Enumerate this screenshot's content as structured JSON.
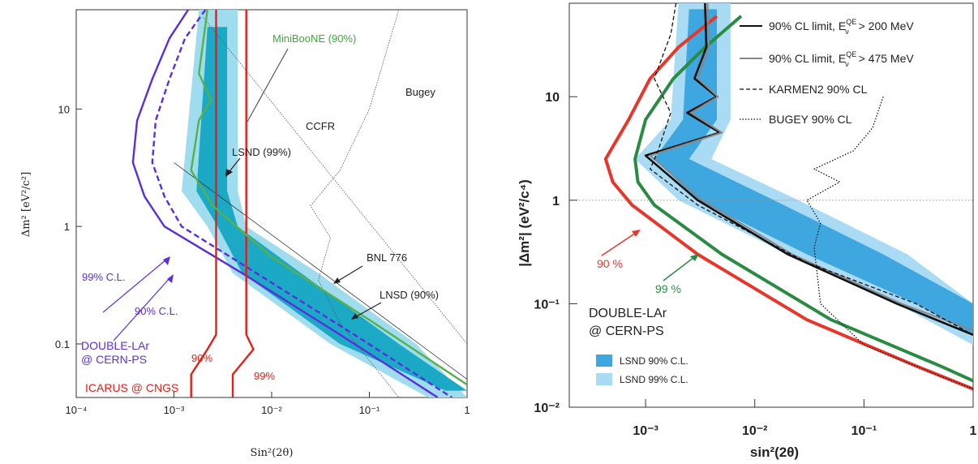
{
  "chart_data": [
    {
      "type": "line",
      "panel": "left",
      "x_scale": "log",
      "y_scale": "log",
      "xlim": [
        0.0001,
        1
      ],
      "ylim": [
        0.035,
        70
      ],
      "xlabel": "Sin²(2θ)",
      "ylabel": "Δm² [eV²/c²]",
      "xticks": [
        "10⁻⁴",
        "10⁻³",
        "10⁻²",
        "10⁻¹",
        "1"
      ],
      "yticks": [
        "0.1",
        "1",
        "10"
      ],
      "colors": {
        "double_lar": "#5a2ee0",
        "icarus": "#e0201a",
        "miniboone": "#56b14a",
        "lsnd_90": "#1ca9c6",
        "lsnd_99": "#9fdcee",
        "exclusion": "#555555"
      },
      "series": [
        {
          "name": "DOUBLE-LAr 99% C.L.",
          "style": "solid",
          "x": [
            0.0014,
            0.0009,
            0.0006,
            0.00042,
            0.00038,
            0.0005,
            0.0008,
            0.005,
            0.05,
            0.5
          ],
          "y": [
            70,
            40,
            18,
            8,
            3.5,
            1.8,
            1.0,
            0.4,
            0.12,
            0.035
          ]
        },
        {
          "name": "DOUBLE-LAr 90% C.L.",
          "style": "dashed",
          "x": [
            0.0021,
            0.0013,
            0.0009,
            0.00065,
            0.0006,
            0.0008,
            0.0012,
            0.007,
            0.07,
            0.7
          ],
          "y": [
            70,
            40,
            18,
            8,
            3.5,
            1.8,
            1.0,
            0.4,
            0.12,
            0.035
          ]
        },
        {
          "name": "ICARUS 90%",
          "style": "solid",
          "x": [
            0.0027,
            0.0027,
            0.0027,
            0.0027,
            0.0022,
            0.0015,
            0.0015
          ],
          "y": [
            70,
            1.0,
            0.2,
            0.12,
            0.09,
            0.055,
            0.035
          ]
        },
        {
          "name": "ICARUS 99%",
          "style": "solid",
          "x": [
            0.0055,
            0.0055,
            0.0055,
            0.0055,
            0.0065,
            0.004,
            0.004
          ],
          "y": [
            70,
            1.0,
            0.2,
            0.12,
            0.09,
            0.055,
            0.035
          ]
        },
        {
          "name": "MiniBooNE (90%)",
          "style": "solid",
          "x": [
            0.0022,
            0.0018,
            0.0024,
            0.0018,
            0.0015,
            0.0025,
            0.01,
            0.1,
            1
          ],
          "y": [
            70,
            20,
            12,
            8,
            3,
            1.5,
            0.55,
            0.16,
            0.045
          ]
        }
      ],
      "lsnd_99_band": {
        "x_lo": [
          0.0018,
          0.0012,
          0.0022,
          0.004,
          0.04,
          0.4
        ],
        "x_hi": [
          0.0045,
          0.0045,
          0.0055,
          0.03,
          0.3,
          1
        ],
        "y": [
          70,
          2.0,
          1.0,
          0.4,
          0.1,
          0.035
        ]
      },
      "lsnd_90_band": {
        "x_lo": [
          0.0022,
          0.0017,
          0.0028,
          0.005,
          0.05,
          0.6
        ],
        "x_hi": [
          0.0035,
          0.0035,
          0.0045,
          0.02,
          0.2,
          1
        ],
        "y": [
          50,
          2.0,
          1.0,
          0.4,
          0.1,
          0.04
        ]
      },
      "annotations": [
        "MiniBooNE (90%)",
        "CCFR",
        "Bugey",
        "LSND (99%)",
        "BNL 776",
        "LNSD (90%)",
        "99% C.L.",
        "90% C.L.",
        "DOUBLE-LAr",
        "@ CERN-PS",
        "90%",
        "99%",
        "ICARUS @ CNGS"
      ]
    },
    {
      "type": "line",
      "panel": "right",
      "x_scale": "log",
      "y_scale": "log",
      "xlim": [
        0.0002,
        1
      ],
      "ylim": [
        0.01,
        80
      ],
      "xlabel": "sin²(2θ)",
      "ylabel": "|Δm²| (eV²/c⁴)",
      "xticks": [
        "10⁻³",
        "10⁻²",
        "10⁻¹",
        "1"
      ],
      "yticks": [
        "10⁻²",
        "10⁻¹",
        "1",
        "10"
      ],
      "grid": "dotted line at Δm² = 1",
      "colors": {
        "red": "#e8362b",
        "green": "#2a8c43",
        "lsnd_90": "#3fa7e0",
        "lsnd_99": "#a9dbf5",
        "limit": "#111111",
        "limit_475": "#888888"
      },
      "legend": {
        "position": "top-right",
        "entries": [
          {
            "label": "90% CL limit, E",
            "sup": "QE",
            "sub": "ν",
            "suffix": " > 200 MeV",
            "style": "solid-black"
          },
          {
            "label": "90% CL limit, E",
            "sup": "QE",
            "sub": "ν",
            "suffix": " > 475 MeV",
            "style": "solid-gray"
          },
          {
            "label": "KARMEN2 90% CL",
            "style": "dashed"
          },
          {
            "label": "BUGEY 90% CL",
            "style": "dotted"
          }
        ],
        "box_entries": [
          "LSND 90% C.L.",
          "LSND 99% C.L."
        ]
      },
      "series": [
        {
          "name": "90%",
          "color": "red",
          "x": [
            0.0045,
            0.002,
            0.0011,
            0.0007,
            0.00043,
            0.0005,
            0.00075,
            0.003,
            0.03,
            0.3,
            1
          ],
          "y": [
            60,
            30,
            15,
            6,
            2.5,
            1.5,
            0.9,
            0.3,
            0.07,
            0.025,
            0.015
          ]
        },
        {
          "name": "99%",
          "color": "green",
          "x": [
            0.0075,
            0.0035,
            0.0018,
            0.001,
            0.0008,
            0.00085,
            0.0012,
            0.005,
            0.05,
            0.5,
            1
          ],
          "y": [
            60,
            30,
            15,
            6,
            2.5,
            1.5,
            0.9,
            0.3,
            0.07,
            0.025,
            0.018
          ]
        },
        {
          "name": "90% CL limit, E > 200 MeV",
          "color": "limit",
          "x": [
            0.0035,
            0.0036,
            0.0028,
            0.0045,
            0.0024,
            0.0048,
            0.001,
            0.003,
            0.02,
            0.2,
            1
          ],
          "y": [
            80,
            30,
            15,
            10,
            7,
            4.5,
            2.7,
            1.0,
            0.3,
            0.1,
            0.05
          ]
        },
        {
          "name": "90% CL limit, E > 475 MeV",
          "color": "limit_475",
          "x": [
            0.0037,
            0.0038,
            0.003,
            0.0046,
            0.0026,
            0.005,
            0.0011,
            0.0033,
            0.022,
            0.22,
            1
          ],
          "y": [
            80,
            30,
            15,
            10,
            7,
            4.5,
            2.7,
            1.0,
            0.3,
            0.1,
            0.055
          ]
        },
        {
          "name": "KARMEN2 90% CL",
          "style": "dashed",
          "x": [
            0.0019,
            0.0017,
            0.0012,
            0.0017,
            0.0013,
            0.0011,
            0.003,
            0.03,
            0.3,
            1
          ],
          "y": [
            80,
            40,
            15,
            7,
            3,
            2.0,
            0.9,
            0.25,
            0.1,
            0.05
          ]
        },
        {
          "name": "BUGEY 90% CL",
          "style": "dotted",
          "x": [
            0.15,
            0.12,
            0.08,
            0.035,
            0.06,
            0.03,
            0.04,
            0.035,
            0.04,
            0.1,
            0.5,
            1
          ],
          "y": [
            10,
            5,
            3,
            2.0,
            1.5,
            1.0,
            0.6,
            0.35,
            0.1,
            0.04,
            0.02,
            0.015
          ]
        }
      ],
      "lsnd_99_band": {
        "x_lo": [
          0.002,
          0.0017,
          0.0008,
          0.002,
          0.02,
          0.2,
          1
        ],
        "x_hi": [
          0.006,
          0.006,
          0.004,
          0.025,
          0.25,
          1,
          1
        ],
        "y": [
          80,
          6,
          2.5,
          1.0,
          0.3,
          0.1,
          0.04
        ]
      },
      "lsnd_90_band": {
        "x_lo": [
          0.0025,
          0.0022,
          0.0012,
          0.003,
          0.03,
          0.3,
          1
        ],
        "x_hi": [
          0.0045,
          0.0045,
          0.0025,
          0.015,
          0.15,
          1,
          1
        ],
        "y": [
          70,
          6,
          2.5,
          1.0,
          0.3,
          0.1,
          0.05
        ]
      },
      "annotations": [
        "90 %",
        "99 %",
        "DOUBLE-LAr",
        "@ CERN-PS"
      ]
    }
  ]
}
